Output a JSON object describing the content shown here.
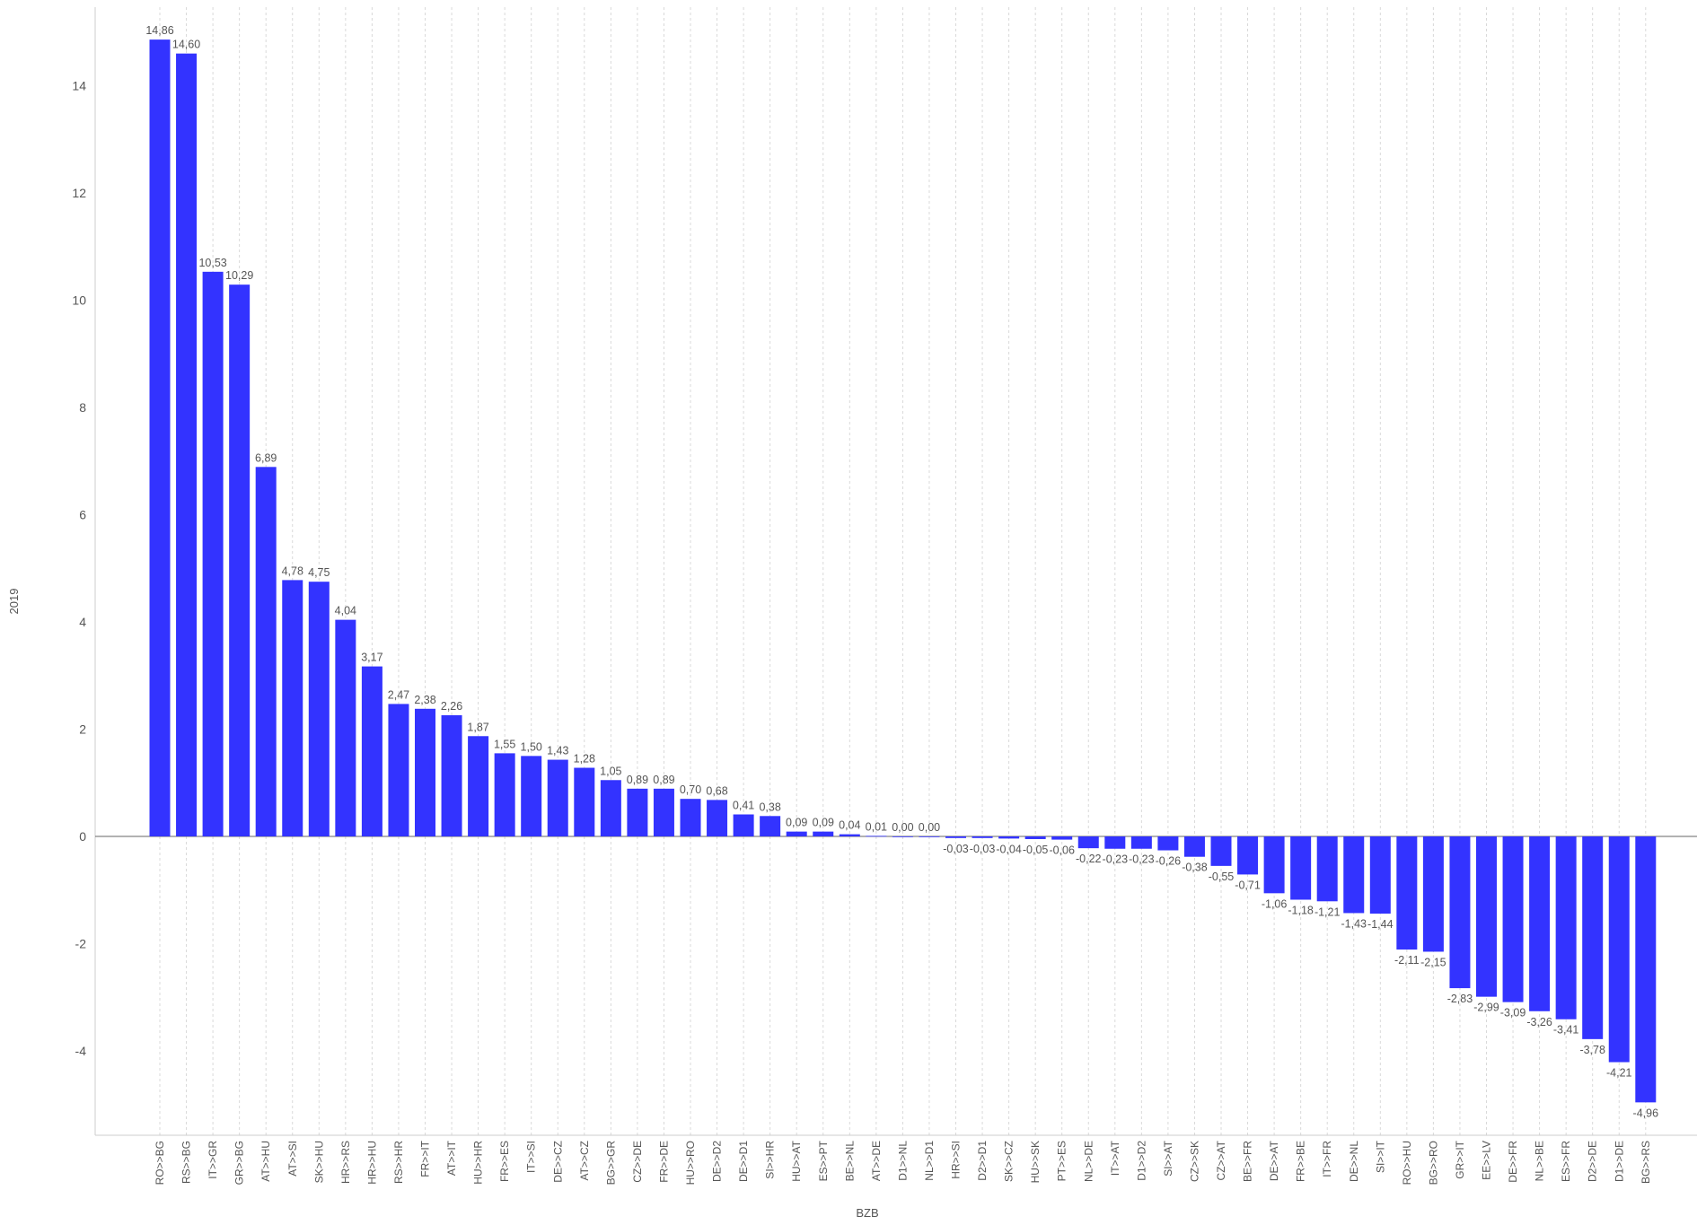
{
  "chart_data": {
    "type": "bar",
    "xlabel": "BZB",
    "ylabel": "2019",
    "ylim": [
      -5.5,
      15.5
    ],
    "yticks": [
      -4,
      -2,
      0,
      2,
      4,
      6,
      8,
      10,
      12,
      14
    ],
    "grid": "vertical dashed per category",
    "bar_color": "#3333ff",
    "categories": [
      "RO>>BG",
      "RS>>BG",
      "IT>>GR",
      "GR>>BG",
      "AT>>HU",
      "AT>>SI",
      "SK>>HU",
      "HR>>RS",
      "HR>>HU",
      "RS>>HR",
      "FR>>IT",
      "AT>>IT",
      "HU>>HR",
      "FR>>ES",
      "IT>>SI",
      "DE>>CZ",
      "AT>>CZ",
      "BG>>GR",
      "CZ>>DE",
      "FR>>DE",
      "HU>>RO",
      "DE>>D2",
      "DE>>D1",
      "SI>>HR",
      "HU>>AT",
      "ES>>PT",
      "BE>>NL",
      "AT>>DE",
      "D1>>NL",
      "NL>>D1",
      "HR>>SI",
      "D2>>D1",
      "SK>>CZ",
      "HU>>SK",
      "PT>>ES",
      "NL>>DE",
      "IT>>AT",
      "D1>>D2",
      "SI>>AT",
      "CZ>>SK",
      "CZ>>AT",
      "BE>>FR",
      "DE>>AT",
      "FR>>BE",
      "IT>>FR",
      "DE>>NL",
      "SI>>IT",
      "RO>>HU",
      "BG>>RO",
      "GR>>IT",
      "EE>>LV",
      "DE>>FR",
      "NL>>BE",
      "ES>>FR",
      "D2>>DE",
      "D1>>DE",
      "BG>>RS"
    ],
    "values": [
      14.86,
      14.6,
      10.53,
      10.29,
      6.89,
      4.78,
      4.75,
      4.04,
      3.17,
      2.47,
      2.38,
      2.26,
      1.87,
      1.55,
      1.5,
      1.43,
      1.28,
      1.05,
      0.89,
      0.89,
      0.7,
      0.68,
      0.41,
      0.38,
      0.09,
      0.09,
      0.04,
      0.01,
      0.0,
      0.0,
      -0.03,
      -0.03,
      -0.04,
      -0.05,
      -0.06,
      -0.22,
      -0.23,
      -0.23,
      -0.26,
      -0.38,
      -0.55,
      -0.71,
      -1.06,
      -1.18,
      -1.21,
      -1.43,
      -1.44,
      -2.11,
      -2.15,
      -2.83,
      -2.99,
      -3.09,
      -3.26,
      -3.41,
      -3.78,
      -4.21,
      -4.96
    ],
    "value_labels": [
      "14,86",
      "14,60",
      "10,53",
      "10,29",
      "6,89",
      "4,78",
      "4,75",
      "4,04",
      "3,17",
      "2,47",
      "2,38",
      "2,26",
      "1,87",
      "1,55",
      "1,50",
      "1,43",
      "1,28",
      "1,05",
      "0,89",
      "0,89",
      "0,70",
      "0,68",
      "0,41",
      "0,38",
      "0,09",
      "0,09",
      "0,04",
      "0,01",
      "0,00",
      "0,00",
      "-0,03",
      "-0,03",
      "-0,04",
      "-0,05",
      "-0,06",
      "-0,22",
      "-0,23",
      "-0,23",
      "-0,26",
      "-0,38",
      "-0,55",
      "-0,71",
      "-1,06",
      "-1,18",
      "-1,21",
      "-1,43",
      "-1,44",
      "-2,11",
      "-2,15",
      "-2,83",
      "-2,99",
      "-3,09",
      "-3,26",
      "-3,41",
      "-3,78",
      "-4,21",
      "-4,96"
    ]
  }
}
